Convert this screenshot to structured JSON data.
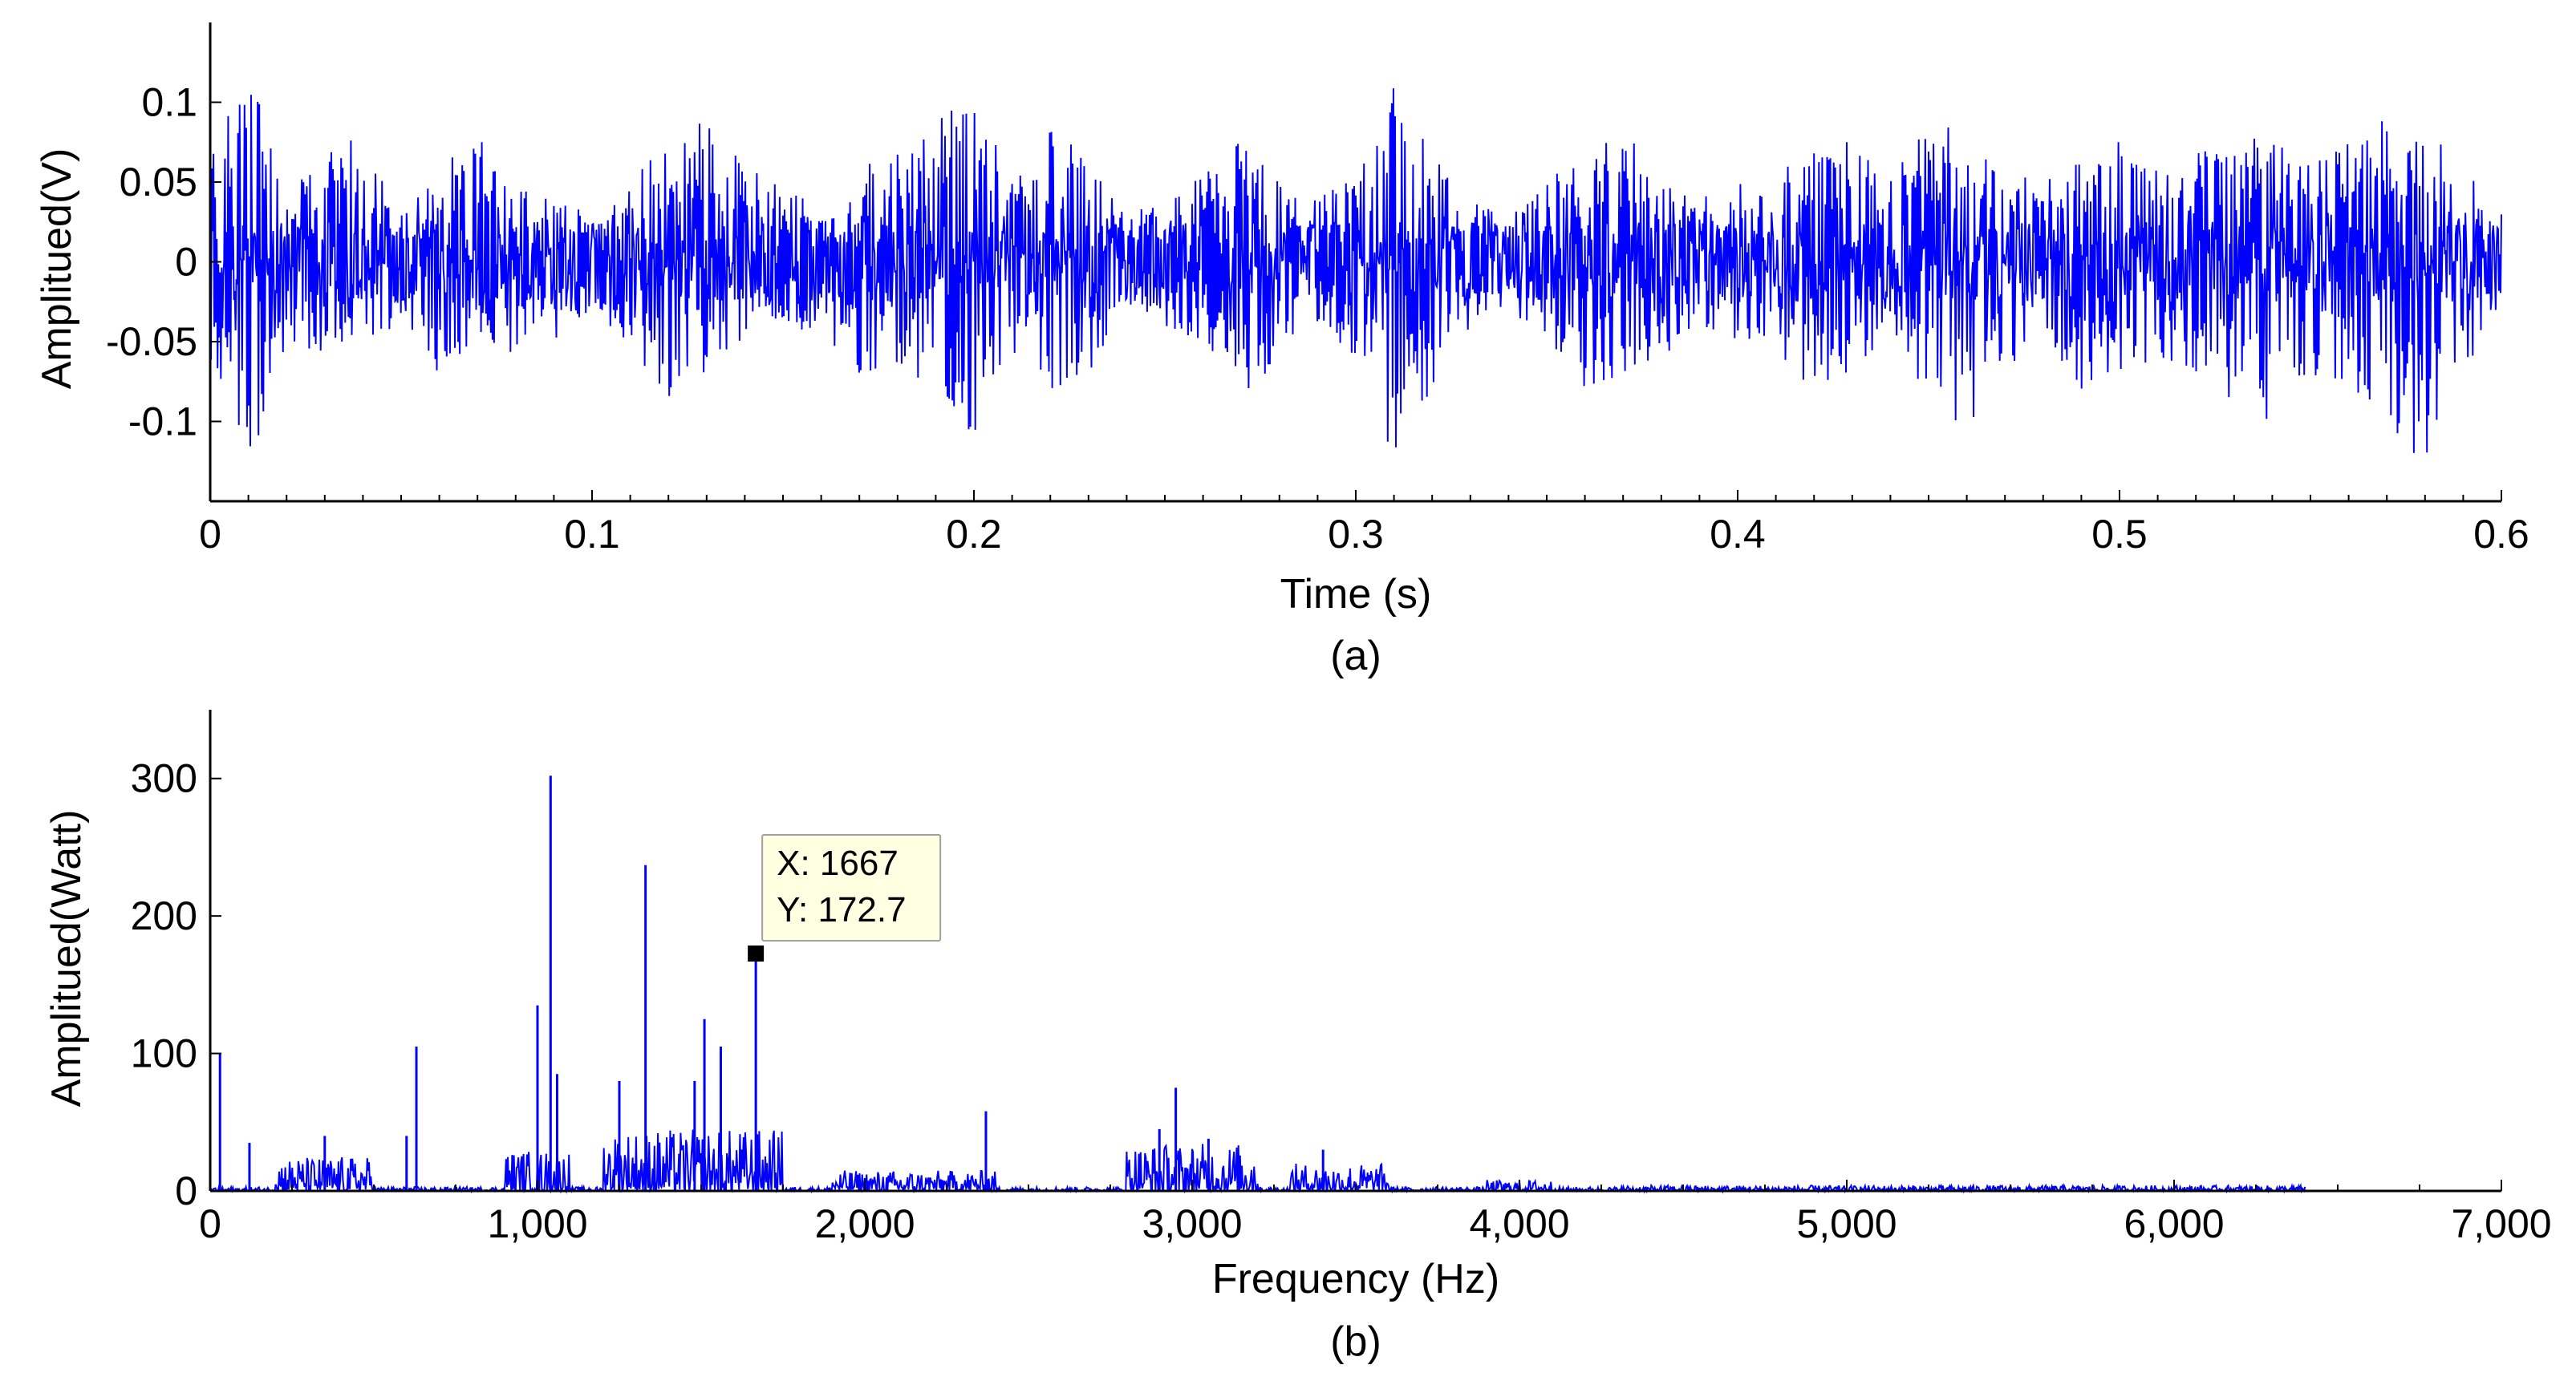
{
  "chart_data": [
    {
      "type": "line",
      "panel_label": "(a)",
      "xlabel": "Time (s)",
      "ylabel": "Amplitued(V)",
      "xlim": [
        0,
        0.6
      ],
      "ylim": [
        -0.15,
        0.15
      ],
      "xticks": [
        0,
        0.1,
        0.2,
        0.3,
        0.4,
        0.5,
        0.6
      ],
      "xtick_labels": [
        "0",
        "0.1",
        "0.2",
        "0.3",
        "0.4",
        "0.5",
        "0.6"
      ],
      "yticks": [
        -0.1,
        -0.05,
        0,
        0.05,
        0.1
      ],
      "ytick_labels": [
        "-0.1",
        "-0.05",
        "0",
        "0.05",
        "0.1"
      ],
      "grid": false,
      "color": "#0000ff",
      "series": [
        {
          "x": [
            0,
            0.01,
            0.02,
            0.03,
            0.04,
            0.05,
            0.06,
            0.07,
            0.08,
            0.09,
            0.1,
            0.11,
            0.12,
            0.13,
            0.14,
            0.15,
            0.16,
            0.17,
            0.18,
            0.19,
            0.2,
            0.21,
            0.22,
            0.23,
            0.24,
            0.25,
            0.26,
            0.27,
            0.28,
            0.29,
            0.3,
            0.31,
            0.32,
            0.33,
            0.34,
            0.35,
            0.36,
            0.37,
            0.38,
            0.39,
            0.4,
            0.41,
            0.42,
            0.43,
            0.44,
            0.45,
            0.46,
            0.47,
            0.48,
            0.49,
            0.5,
            0.51,
            0.52,
            0.53,
            0.54,
            0.55,
            0.56,
            0.57,
            0.58,
            0.59,
            0.6
          ],
          "y_max": [
            0.07,
            0.135,
            0.04,
            0.07,
            0.08,
            0.03,
            0.06,
            0.08,
            0.05,
            0.04,
            0.03,
            0.05,
            0.08,
            0.09,
            0.06,
            0.05,
            0.04,
            0.06,
            0.07,
            0.09,
            0.11,
            0.05,
            0.09,
            0.06,
            0.03,
            0.04,
            0.06,
            0.08,
            0.05,
            0.04,
            0.06,
            0.11,
            0.07,
            0.04,
            0.03,
            0.05,
            0.07,
            0.08,
            0.06,
            0.04,
            0.05,
            0.06,
            0.07,
            0.08,
            0.05,
            0.09,
            0.08,
            0.06,
            0.05,
            0.07,
            0.08,
            0.06,
            0.07,
            0.08,
            0.09,
            0.06,
            0.08,
            0.09,
            0.085,
            0.06,
            0.03
          ],
          "y_min": [
            -0.06,
            -0.13,
            -0.05,
            -0.06,
            -0.05,
            -0.04,
            -0.07,
            -0.05,
            -0.06,
            -0.05,
            -0.03,
            -0.06,
            -0.09,
            -0.07,
            -0.05,
            -0.04,
            -0.05,
            -0.07,
            -0.07,
            -0.08,
            -0.12,
            -0.06,
            -0.08,
            -0.07,
            -0.03,
            -0.04,
            -0.05,
            -0.09,
            -0.06,
            -0.04,
            -0.06,
            -0.125,
            -0.08,
            -0.04,
            -0.03,
            -0.05,
            -0.08,
            -0.07,
            -0.06,
            -0.04,
            -0.05,
            -0.06,
            -0.08,
            -0.07,
            -0.05,
            -0.09,
            -0.12,
            -0.07,
            -0.05,
            -0.08,
            -0.07,
            -0.06,
            -0.07,
            -0.09,
            -0.1,
            -0.07,
            -0.08,
            -0.1,
            -0.13,
            -0.07,
            -0.03
          ]
        }
      ]
    },
    {
      "type": "line",
      "panel_label": "(b)",
      "xlabel": "Frequency (Hz)",
      "ylabel": "Amplitued(Watt)",
      "xlim": [
        0,
        7000
      ],
      "ylim": [
        0,
        350
      ],
      "xticks": [
        0,
        1000,
        2000,
        3000,
        4000,
        5000,
        6000,
        7000
      ],
      "xtick_labels": [
        "0",
        "1,000",
        "2,000",
        "3,000",
        "4,000",
        "5,000",
        "6,000",
        "7,000"
      ],
      "yticks": [
        0,
        100,
        200,
        300
      ],
      "ytick_labels": [
        "0",
        "100",
        "200",
        "300"
      ],
      "grid": false,
      "color": "#0000ff",
      "peaks": [
        {
          "x": 30,
          "y": 100
        },
        {
          "x": 120,
          "y": 35
        },
        {
          "x": 350,
          "y": 40
        },
        {
          "x": 600,
          "y": 40
        },
        {
          "x": 630,
          "y": 105
        },
        {
          "x": 1000,
          "y": 135
        },
        {
          "x": 1040,
          "y": 302
        },
        {
          "x": 1060,
          "y": 85
        },
        {
          "x": 1250,
          "y": 80
        },
        {
          "x": 1330,
          "y": 237
        },
        {
          "x": 1480,
          "y": 80
        },
        {
          "x": 1510,
          "y": 125
        },
        {
          "x": 1560,
          "y": 105
        },
        {
          "x": 1667,
          "y": 172.7
        },
        {
          "x": 2370,
          "y": 58
        },
        {
          "x": 2900,
          "y": 45
        },
        {
          "x": 2950,
          "y": 75
        },
        {
          "x": 3050,
          "y": 38
        },
        {
          "x": 3400,
          "y": 30
        }
      ],
      "datatip": {
        "x_label": "X: 1667",
        "y_label": "Y: 172.7",
        "x": 1667,
        "y": 172.7
      },
      "noise_bands": [
        {
          "from": 200,
          "to": 500,
          "level": 25
        },
        {
          "from": 900,
          "to": 1100,
          "level": 30
        },
        {
          "from": 1200,
          "to": 1750,
          "level": 45
        },
        {
          "from": 1900,
          "to": 2400,
          "level": 15
        },
        {
          "from": 2800,
          "to": 3200,
          "level": 35
        },
        {
          "from": 3300,
          "to": 3600,
          "level": 20
        },
        {
          "from": 3900,
          "to": 4100,
          "level": 8
        },
        {
          "from": 4300,
          "to": 6400,
          "level": 4
        }
      ]
    }
  ]
}
